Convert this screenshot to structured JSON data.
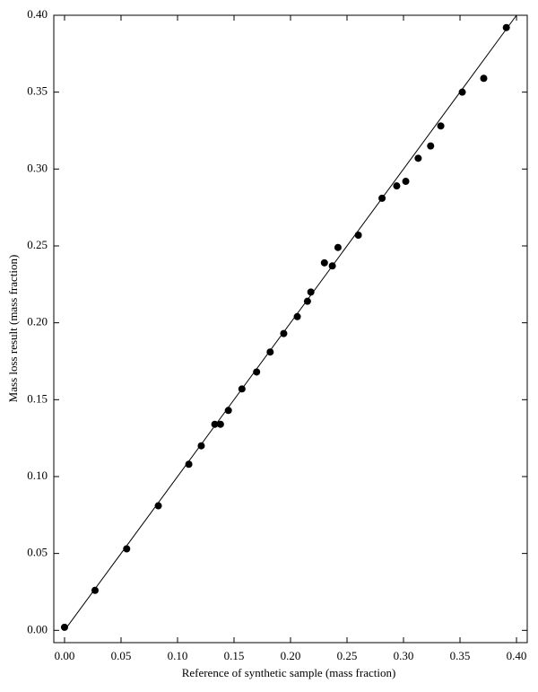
{
  "chart_data": {
    "type": "scatter",
    "xlabel": "Reference of synthetic sample (mass fraction)",
    "ylabel": "Mass loss result (mass fraction)",
    "color": "#000000",
    "xlim": [
      -0.0095,
      0.4095
    ],
    "ylim": [
      -0.008,
      0.4
    ],
    "xticks": [
      {
        "value": 0,
        "label": "0.00"
      },
      {
        "value": 0.05,
        "label": "0.05"
      },
      {
        "value": 0.1,
        "label": "0.10"
      },
      {
        "value": 0.15,
        "label": "0.15"
      },
      {
        "value": 0.2,
        "label": "0.20"
      },
      {
        "value": 0.25,
        "label": "0.25"
      },
      {
        "value": 0.3,
        "label": "0.30"
      },
      {
        "value": 0.35,
        "label": "0.35"
      },
      {
        "value": 0.4,
        "label": "0.40"
      }
    ],
    "yticks": [
      {
        "value": 0,
        "label": "0.00"
      },
      {
        "value": 0.05,
        "label": "0.05"
      },
      {
        "value": 0.1,
        "label": "0.10"
      },
      {
        "value": 0.15,
        "label": "0.15"
      },
      {
        "value": 0.2,
        "label": "0.20"
      },
      {
        "value": 0.25,
        "label": "0.25"
      },
      {
        "value": 0.3,
        "label": "0.30"
      },
      {
        "value": 0.35,
        "label": "0.35"
      },
      {
        "value": 0.4,
        "label": "0.40"
      }
    ],
    "x": [
      0.0,
      0.027,
      0.055,
      0.083,
      0.11,
      0.121,
      0.133,
      0.138,
      0.145,
      0.157,
      0.17,
      0.182,
      0.194,
      0.206,
      0.215,
      0.218,
      0.23,
      0.237,
      0.242,
      0.26,
      0.281,
      0.294,
      0.302,
      0.313,
      0.324,
      0.333,
      0.352,
      0.371,
      0.391
    ],
    "values": [
      0.002,
      0.026,
      0.053,
      0.081,
      0.108,
      0.12,
      0.134,
      0.134,
      0.143,
      0.157,
      0.168,
      0.181,
      0.193,
      0.204,
      0.214,
      0.22,
      0.239,
      0.237,
      0.249,
      0.257,
      0.281,
      0.289,
      0.292,
      0.307,
      0.315,
      0.328,
      0.35,
      0.359,
      0.392
    ],
    "fit_line": {
      "x": [
        0,
        0.4
      ],
      "y": [
        0,
        0.4
      ]
    }
  }
}
